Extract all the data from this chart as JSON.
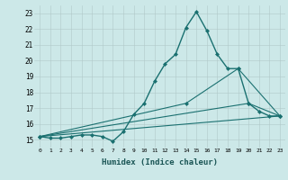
{
  "xlabel": "Humidex (Indice chaleur)",
  "ylabel": "",
  "background_color": "#cce8e8",
  "grid_color": "#b0c8c8",
  "line_color": "#1a7070",
  "xlim": [
    -0.5,
    23.5
  ],
  "ylim": [
    14.5,
    23.5
  ],
  "yticks": [
    15,
    16,
    17,
    18,
    19,
    20,
    21,
    22,
    23
  ],
  "xtick_labels": [
    "0",
    "1",
    "2",
    "3",
    "4",
    "5",
    "6",
    "7",
    "8",
    "9",
    "10",
    "11",
    "12",
    "13",
    "14",
    "15",
    "16",
    "17",
    "18",
    "19",
    "20",
    "21",
    "22",
    "23"
  ],
  "xticks": [
    0,
    1,
    2,
    3,
    4,
    5,
    6,
    7,
    8,
    9,
    10,
    11,
    12,
    13,
    14,
    15,
    16,
    17,
    18,
    19,
    20,
    21,
    22,
    23
  ],
  "series": [
    {
      "x": [
        0,
        1,
        2,
        3,
        4,
        5,
        6,
        7,
        8,
        9,
        10,
        11,
        12,
        13,
        14,
        15,
        16,
        17,
        18,
        19,
        20,
        21,
        22,
        23
      ],
      "y": [
        15.2,
        15.1,
        15.1,
        15.2,
        15.3,
        15.3,
        15.2,
        14.9,
        15.5,
        16.6,
        17.3,
        18.7,
        19.8,
        20.4,
        22.1,
        23.1,
        21.9,
        20.4,
        19.5,
        19.5,
        17.3,
        16.8,
        16.5,
        16.5
      ],
      "marker": "D",
      "markersize": 2.0,
      "linewidth": 1.0,
      "has_marker": true
    },
    {
      "x": [
        0,
        23
      ],
      "y": [
        15.2,
        16.5
      ],
      "marker": null,
      "markersize": 0,
      "linewidth": 0.8,
      "has_marker": false
    },
    {
      "x": [
        0,
        14,
        19,
        23
      ],
      "y": [
        15.2,
        17.3,
        19.5,
        16.5
      ],
      "marker": "D",
      "markersize": 2.0,
      "linewidth": 0.8,
      "has_marker": true
    },
    {
      "x": [
        0,
        20,
        23
      ],
      "y": [
        15.2,
        17.3,
        16.5
      ],
      "marker": "D",
      "markersize": 2.0,
      "linewidth": 0.8,
      "has_marker": true
    }
  ]
}
